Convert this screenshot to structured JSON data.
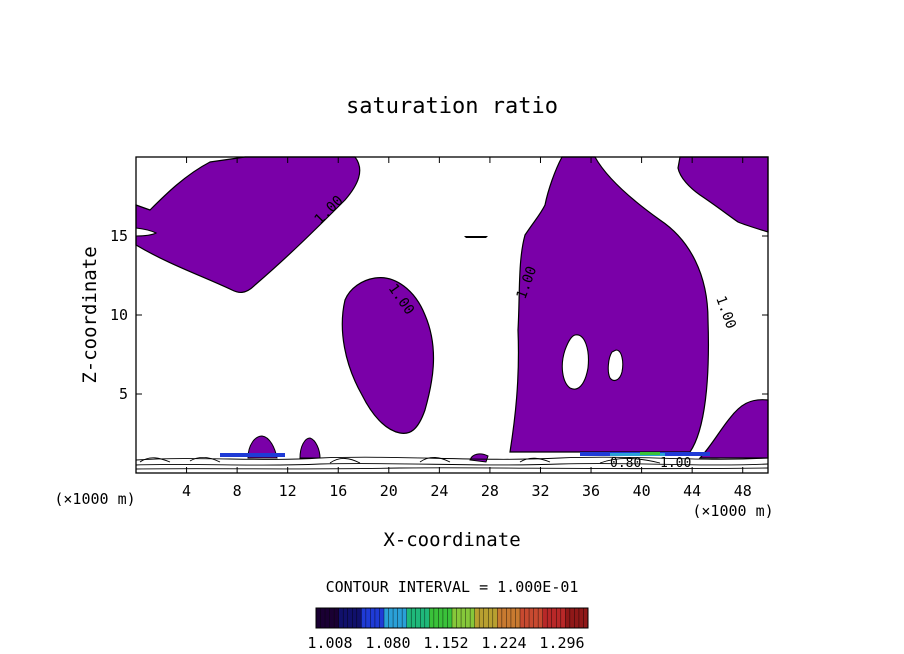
{
  "chart_data": {
    "type": "heatmap",
    "title": "saturation ratio",
    "xlabel": "X-coordinate",
    "ylabel": "Z-coordinate",
    "x_unit": "(×1000 m)",
    "y_unit": "(×1000 m)",
    "xlim": [
      0,
      50
    ],
    "ylim": [
      0,
      20
    ],
    "x_ticks": [
      4,
      8,
      12,
      16,
      20,
      24,
      28,
      32,
      36,
      40,
      44,
      48
    ],
    "y_ticks": [
      5,
      10,
      15
    ],
    "contour_interval_text": "CONTOUR INTERVAL = 1.000E-01",
    "contour_labels": [
      "1.00",
      "1.00",
      "1.00",
      "1.00",
      "0.80",
      "1.00"
    ],
    "colorbar": {
      "ticks": [
        "1.008",
        "1.080",
        "1.152",
        "1.224",
        "1.296"
      ],
      "colors": [
        "#1a0033",
        "#10106b",
        "#1f3bd6",
        "#2aa0d8",
        "#1fb87a",
        "#3ac23a",
        "#86c83a",
        "#b8a030",
        "#c87a30",
        "#c84a30",
        "#b82828",
        "#901818"
      ]
    },
    "fill_color": "#7a00a8"
  }
}
